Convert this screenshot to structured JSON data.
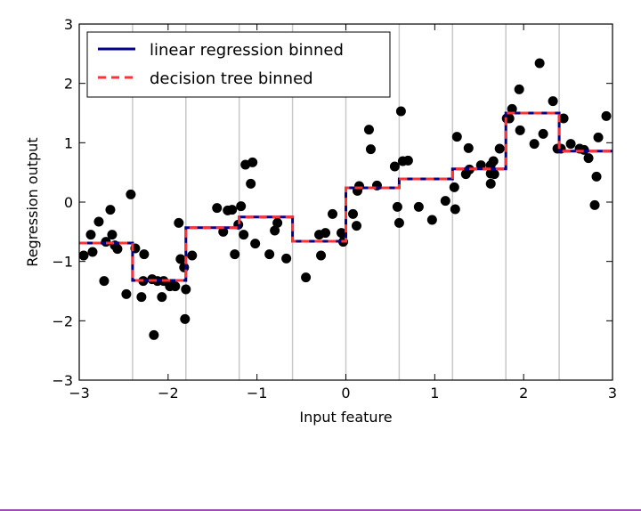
{
  "chart_data": {
    "type": "line",
    "title": "",
    "xlabel": "Input feature",
    "ylabel": "Regression output",
    "xlim": [
      -3,
      3
    ],
    "ylim": [
      -3,
      3
    ],
    "xticks": [
      -3,
      -2,
      -1,
      0,
      1,
      2,
      3
    ],
    "xtick_labels": [
      "−3",
      "−2",
      "−1",
      "0",
      "1",
      "2",
      "3"
    ],
    "yticks": [
      -3,
      -2,
      -1,
      0,
      1,
      2,
      3
    ],
    "ytick_labels": [
      "−3",
      "−2",
      "−1",
      "0",
      "1",
      "2",
      "3"
    ],
    "bin_edges": [
      -2.4,
      -1.8,
      -1.2,
      -0.6,
      0.0,
      0.6,
      1.2,
      1.8,
      2.4
    ],
    "legend_position": "top-left",
    "colors": {
      "linear": "#00008b",
      "tree": "#ff3333",
      "points": "#000000",
      "bin_lines": "#c8c8c8",
      "accent_rule": "#9b4fb0"
    },
    "series": [
      {
        "name": "linear regression binned",
        "style": "solid",
        "x": [
          -3.0,
          -2.4,
          -2.4,
          -1.8,
          -1.8,
          -1.2,
          -1.2,
          -0.6,
          -0.6,
          0.0,
          0.0,
          0.6,
          0.6,
          1.2,
          1.2,
          1.8,
          1.8,
          2.4,
          2.4,
          3.0
        ],
        "y": [
          -0.69,
          -0.69,
          -1.32,
          -1.32,
          -0.43,
          -0.43,
          -0.25,
          -0.25,
          -0.66,
          -0.66,
          0.24,
          0.24,
          0.39,
          0.39,
          0.56,
          0.56,
          1.5,
          1.5,
          0.86,
          0.86
        ]
      },
      {
        "name": "decision tree binned",
        "style": "dashed",
        "x": [
          -3.0,
          -2.4,
          -2.4,
          -1.8,
          -1.8,
          -1.2,
          -1.2,
          -0.6,
          -0.6,
          0.0,
          0.0,
          0.6,
          0.6,
          1.2,
          1.2,
          1.8,
          1.8,
          2.4,
          2.4,
          3.0
        ],
        "y": [
          -0.69,
          -0.69,
          -1.32,
          -1.32,
          -0.43,
          -0.43,
          -0.25,
          -0.25,
          -0.66,
          -0.66,
          0.24,
          0.24,
          0.39,
          0.39,
          0.56,
          0.56,
          1.5,
          1.5,
          0.86,
          0.86
        ]
      }
    ],
    "points": [
      [
        -2.95,
        -0.9
      ],
      [
        -2.87,
        -0.55
      ],
      [
        -2.85,
        -0.84
      ],
      [
        -2.78,
        -0.33
      ],
      [
        -2.72,
        -1.33
      ],
      [
        -2.7,
        -0.67
      ],
      [
        -2.65,
        -0.13
      ],
      [
        -2.63,
        -0.55
      ],
      [
        -2.6,
        -0.73
      ],
      [
        -2.57,
        -0.79
      ],
      [
        -2.47,
        -1.55
      ],
      [
        -2.42,
        0.13
      ],
      [
        -2.37,
        -0.78
      ],
      [
        -2.3,
        -1.6
      ],
      [
        -2.27,
        -0.88
      ],
      [
        -2.28,
        -1.33
      ],
      [
        -2.18,
        -1.3
      ],
      [
        -2.16,
        -2.24
      ],
      [
        -2.12,
        -1.33
      ],
      [
        -2.07,
        -1.6
      ],
      [
        -2.05,
        -1.33
      ],
      [
        -1.98,
        -1.42
      ],
      [
        -1.95,
        -1.38
      ],
      [
        -1.92,
        -1.42
      ],
      [
        -1.88,
        -0.35
      ],
      [
        -1.86,
        -0.96
      ],
      [
        -1.82,
        -1.1
      ],
      [
        -1.81,
        -1.97
      ],
      [
        -1.8,
        -1.47
      ],
      [
        -1.73,
        -0.9
      ],
      [
        -1.45,
        -0.1
      ],
      [
        -1.38,
        -0.5
      ],
      [
        -1.33,
        -0.14
      ],
      [
        -1.28,
        -0.13
      ],
      [
        -1.25,
        -0.88
      ],
      [
        -1.21,
        -0.38
      ],
      [
        -1.18,
        -0.07
      ],
      [
        -1.15,
        -0.55
      ],
      [
        -1.13,
        0.63
      ],
      [
        -1.07,
        0.31
      ],
      [
        -1.05,
        0.67
      ],
      [
        -1.02,
        -0.7
      ],
      [
        -0.86,
        -0.88
      ],
      [
        -0.8,
        -0.48
      ],
      [
        -0.77,
        -0.35
      ],
      [
        -0.67,
        -0.95
      ],
      [
        -0.45,
        -1.27
      ],
      [
        -0.3,
        -0.55
      ],
      [
        -0.28,
        -0.9
      ],
      [
        -0.23,
        -0.52
      ],
      [
        -0.15,
        -0.2
      ],
      [
        -0.05,
        -0.52
      ],
      [
        -0.03,
        -0.67
      ],
      [
        0.08,
        -0.2
      ],
      [
        0.12,
        -0.4
      ],
      [
        0.13,
        0.19
      ],
      [
        0.15,
        0.27
      ],
      [
        0.26,
        1.22
      ],
      [
        0.28,
        0.89
      ],
      [
        0.35,
        0.28
      ],
      [
        0.55,
        0.6
      ],
      [
        0.58,
        -0.08
      ],
      [
        0.6,
        -0.35
      ],
      [
        0.62,
        1.53
      ],
      [
        0.64,
        0.69
      ],
      [
        0.7,
        0.7
      ],
      [
        0.82,
        -0.08
      ],
      [
        0.97,
        -0.3
      ],
      [
        1.12,
        0.02
      ],
      [
        1.22,
        0.25
      ],
      [
        1.25,
        1.1
      ],
      [
        1.23,
        -0.12
      ],
      [
        1.35,
        0.47
      ],
      [
        1.38,
        0.91
      ],
      [
        1.39,
        0.55
      ],
      [
        1.52,
        0.62
      ],
      [
        1.63,
        0.62
      ],
      [
        1.63,
        0.48
      ],
      [
        1.63,
        0.31
      ],
      [
        1.66,
        0.69
      ],
      [
        1.67,
        0.47
      ],
      [
        1.73,
        0.9
      ],
      [
        1.81,
        1.41
      ],
      [
        1.84,
        1.41
      ],
      [
        1.87,
        1.57
      ],
      [
        1.95,
        1.9
      ],
      [
        1.96,
        1.21
      ],
      [
        2.12,
        0.98
      ],
      [
        2.18,
        2.34
      ],
      [
        2.22,
        1.15
      ],
      [
        2.33,
        1.7
      ],
      [
        2.38,
        0.9
      ],
      [
        2.42,
        0.9
      ],
      [
        2.45,
        1.41
      ],
      [
        2.53,
        0.98
      ],
      [
        2.63,
        0.9
      ],
      [
        2.68,
        0.88
      ],
      [
        2.73,
        0.74
      ],
      [
        2.8,
        -0.05
      ],
      [
        2.82,
        0.43
      ],
      [
        2.84,
        1.09
      ],
      [
        2.93,
        1.45
      ]
    ]
  }
}
